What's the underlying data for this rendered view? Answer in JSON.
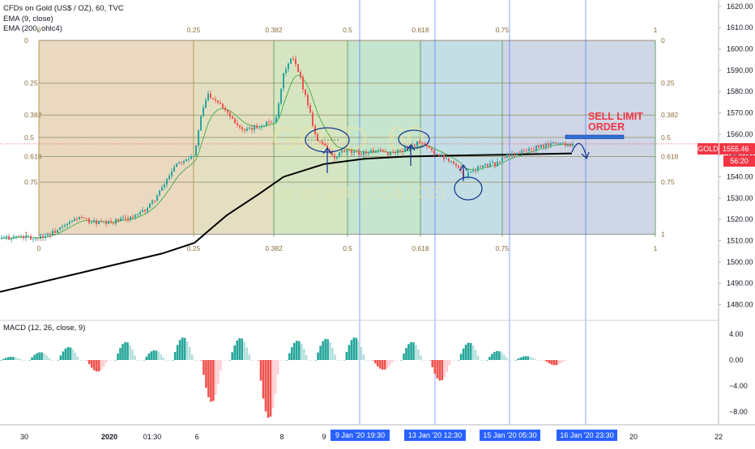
{
  "header": {
    "title": "CFDs on Gold (US$ / OZ), 60, TVC",
    "ema_fast": "EMA (9, close)",
    "ema_slow": "EMA (200, ohlc4)",
    "watermark_symbol": "GOLD, 60",
    "watermark_name": "CFDs on Gold (US$ / OZ)"
  },
  "macd": {
    "label": "MACD (12, 26, close, 9)"
  },
  "badges": {
    "symbol": "GOLD",
    "price": "1555.46",
    "countdown": "56:20",
    "dates": [
      "9 Jan '20   19:30",
      "13 Jan '20   12:30",
      "15 Jan '20   05:30",
      "16 Jan '20   23:30"
    ]
  },
  "annotation": {
    "line1": "SELL LIMIT",
    "line2": "ORDER"
  },
  "colors": {
    "up": "#26a69a",
    "down": "#ef5350",
    "ema_fast": "#4caf50",
    "ema_slow": "#000000",
    "accent": "#2962ff",
    "price_line": "#f23645"
  },
  "chart_data": {
    "type": "candlestick",
    "price_axis": {
      "ticks": [
        1480,
        1490,
        1500,
        1510,
        1520,
        1530,
        1540,
        1550,
        1560,
        1570,
        1580,
        1590,
        1600,
        1610,
        1620
      ],
      "range": [
        1473,
        1623
      ]
    },
    "macd_axis": {
      "ticks": [
        4,
        0,
        -4,
        -8
      ],
      "tick_labels": [
        "4.00",
        "0.00",
        "−4.00",
        "−8.00"
      ],
      "range": [
        -10,
        6
      ]
    },
    "time_axis": [
      "30",
      "2020",
      "01:30",
      "6",
      "8",
      "9",
      "20",
      "22"
    ],
    "last_price": 1555.46,
    "close_path": [
      [
        0,
        1511
      ],
      [
        20,
        1512
      ],
      [
        40,
        1511
      ],
      [
        60,
        1513
      ],
      [
        80,
        1517
      ],
      [
        95,
        1521
      ],
      [
        110,
        1519
      ],
      [
        130,
        1518
      ],
      [
        150,
        1520
      ],
      [
        170,
        1522
      ],
      [
        185,
        1527
      ],
      [
        200,
        1535
      ],
      [
        215,
        1546
      ],
      [
        230,
        1549
      ],
      [
        240,
        1551
      ],
      [
        245,
        1565
      ],
      [
        255,
        1579
      ],
      [
        270,
        1575
      ],
      [
        285,
        1568
      ],
      [
        300,
        1561
      ],
      [
        320,
        1564
      ],
      [
        340,
        1567
      ],
      [
        350,
        1590
      ],
      [
        360,
        1596
      ],
      [
        370,
        1586
      ],
      [
        380,
        1573
      ],
      [
        390,
        1557
      ],
      [
        400,
        1555
      ],
      [
        412,
        1548
      ],
      [
        420,
        1552
      ],
      [
        440,
        1551
      ],
      [
        460,
        1552
      ],
      [
        480,
        1551
      ],
      [
        500,
        1553
      ],
      [
        515,
        1556
      ],
      [
        525,
        1554
      ],
      [
        540,
        1550
      ],
      [
        555,
        1548
      ],
      [
        565,
        1544
      ],
      [
        572,
        1540
      ],
      [
        580,
        1543
      ],
      [
        595,
        1545
      ],
      [
        610,
        1546
      ],
      [
        625,
        1550
      ],
      [
        645,
        1552
      ],
      [
        665,
        1554
      ],
      [
        685,
        1556
      ],
      [
        700,
        1555.5
      ],
      [
        706,
        1555.46
      ]
    ],
    "ema200": [
      [
        0,
        1486
      ],
      [
        100,
        1495
      ],
      [
        200,
        1504
      ],
      [
        240,
        1509
      ],
      [
        280,
        1522
      ],
      [
        320,
        1532
      ],
      [
        350,
        1540
      ],
      [
        400,
        1546
      ],
      [
        450,
        1548.5
      ],
      [
        500,
        1549.5
      ],
      [
        560,
        1550
      ],
      [
        640,
        1550.5
      ],
      [
        706,
        1551
      ]
    ],
    "fib_retracements": [
      {
        "label": "0",
        "price": 1604,
        "shade": "#c8a27a"
      },
      {
        "label": "0.25",
        "price": 1584,
        "shade": "#c8b97a"
      },
      {
        "label": "0.382",
        "price": 1569,
        "shade": "#a6c77a"
      },
      {
        "label": "0.5",
        "price": 1558.5,
        "shade": "#7fc69a"
      },
      {
        "label": "0.618",
        "price": 1549.5,
        "shade": "#7db6c8"
      },
      {
        "label": "0.75",
        "price": 1537.5,
        "shade": "#9aaac6"
      },
      {
        "label": "1",
        "price": 1513,
        "shade": "#b9b6b4"
      }
    ],
    "fib_time_labels": [
      "0",
      "0.25",
      "0.382",
      "0.5",
      "0.618",
      "0.75",
      "1"
    ],
    "macd_histogram": {
      "note": "approximate envelope of MACD histogram waves",
      "waves": [
        {
          "peak": 0.5,
          "sign": "up"
        },
        {
          "peak": 1.2,
          "sign": "up"
        },
        {
          "peak": 2.0,
          "sign": "up"
        },
        {
          "peak": -1.8,
          "sign": "down"
        },
        {
          "peak": 2.8,
          "sign": "up"
        },
        {
          "peak": 1.5,
          "sign": "up"
        },
        {
          "peak": 3.5,
          "sign": "up"
        },
        {
          "peak": -6.5,
          "sign": "down"
        },
        {
          "peak": 3.4,
          "sign": "up"
        },
        {
          "peak": -9.0,
          "sign": "down"
        },
        {
          "peak": 3.0,
          "sign": "up"
        },
        {
          "peak": 3.3,
          "sign": "up"
        },
        {
          "peak": 3.5,
          "sign": "up"
        },
        {
          "peak": -1.5,
          "sign": "down"
        },
        {
          "peak": 2.8,
          "sign": "up"
        },
        {
          "peak": -3.2,
          "sign": "down"
        },
        {
          "peak": 2.7,
          "sign": "up"
        },
        {
          "peak": 1.4,
          "sign": "up"
        },
        {
          "peak": 0.6,
          "sign": "up"
        },
        {
          "peak": -0.8,
          "sign": "down"
        }
      ]
    }
  }
}
